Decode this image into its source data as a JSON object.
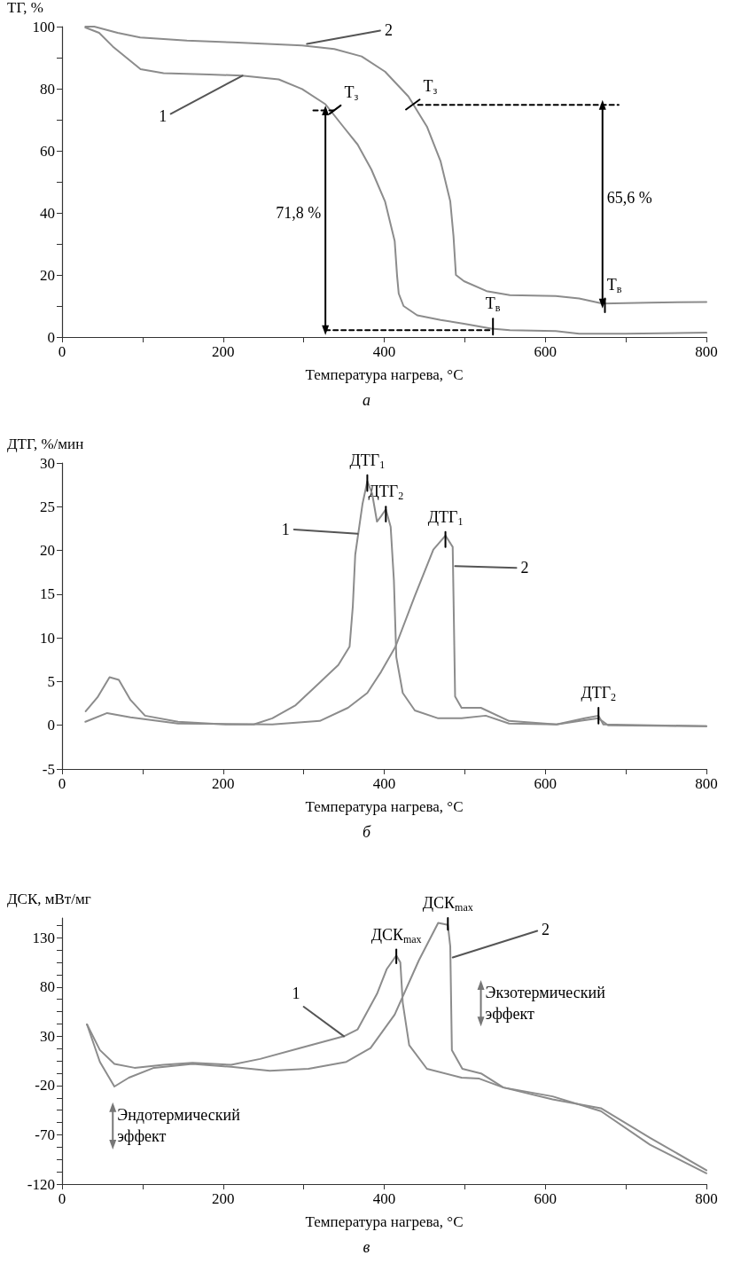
{
  "chart_data": [
    {
      "type": "line",
      "xlabel": "Температура нагрева, °C",
      "ylabel": "ТГ, %",
      "line_style": "solid",
      "xlim": [
        0,
        800
      ],
      "xticks": [
        0,
        {
          "value": 100,
          "label": null
        },
        200,
        {
          "value": 300,
          "label": null
        },
        400,
        {
          "value": 500,
          "label": null
        },
        600,
        {
          "value": 700,
          "label": null
        },
        800
      ],
      "ylim": [
        0,
        100
      ],
      "yticks": [
        0,
        {
          "value": 10,
          "label": null
        },
        20,
        {
          "value": 30,
          "label": null
        },
        40,
        {
          "value": 50,
          "label": null
        },
        60,
        {
          "value": 70,
          "label": null
        },
        80,
        {
          "value": 90,
          "label": null
        },
        100
      ],
      "series": [
        {
          "color": "#8c8c8c",
          "x": [
            29,
            46,
            63,
            86,
            97.5,
            126,
            183,
            223,
            269,
            298,
            327,
            350,
            367,
            384,
            401,
            413,
            416,
            418,
            424,
            441,
            470,
            499,
            533,
            556,
            613,
            642,
            699,
            800
          ],
          "values": [
            99.7,
            98,
            93.6,
            88.7,
            86.3,
            85,
            84.6,
            84.2,
            83,
            79.9,
            75,
            67.5,
            62,
            54,
            43.7,
            30.9,
            19.6,
            14,
            10,
            7,
            5.5,
            4.3,
            2.7,
            2.2,
            1.9,
            1.1,
            1.1,
            1.4
          ]
        },
        {
          "color": "#8c8c8c",
          "x": [
            29,
            40,
            69,
            97,
            155,
            212,
            298,
            338,
            372,
            401,
            430,
            453,
            470,
            482,
            486,
            489,
            499,
            527,
            556,
            613,
            642,
            671,
            728,
            800
          ],
          "values": [
            100,
            100,
            98,
            96.5,
            95.5,
            94.9,
            93.9,
            92.8,
            90.4,
            85.5,
            77.5,
            67.8,
            56.6,
            43.7,
            32.5,
            20,
            18,
            14.8,
            13.5,
            13.2,
            12.4,
            10.8,
            11.1,
            11.3
          ]
        },
        {
          "color": "#000000",
          "line_style": "dashed",
          "x": [
            312,
            341
          ],
          "values": [
            73,
            73
          ]
        },
        {
          "color": "#000000",
          "line_style": "dashed",
          "x": [
            442,
            691
          ],
          "values": [
            74.8,
            74.8
          ]
        },
        {
          "color": "#000000",
          "line_style": "dashed",
          "x": [
            327,
            533
          ],
          "values": [
            2.2,
            2.2
          ]
        },
        {
          "color": "#000000",
          "marker": "triangle",
          "x": [
            327,
            327
          ],
          "values": [
            73,
            2.2
          ]
        },
        {
          "color": "#000000",
          "marker": "triangle",
          "x": [
            671,
            671
          ],
          "values": [
            74.8,
            10.8
          ]
        },
        {
          "color": "#555555",
          "x": [
            135,
            224
          ],
          "values": [
            71.9,
            84.2
          ]
        },
        {
          "color": "#555555",
          "x": [
            304,
            395
          ],
          "values": [
            94.4,
            98.7
          ]
        },
        {
          "color": "#000000",
          "x": [
            332,
            346
          ],
          "values": [
            71.9,
            74.6
          ]
        },
        {
          "color": "#000000",
          "x": [
            427,
            444
          ],
          "values": [
            73.3,
            76.5
          ]
        },
        {
          "color": "#000000",
          "x": [
            535,
            535
          ],
          "values": [
            0.8,
            5.9
          ]
        },
        {
          "color": "#000000",
          "x": [
            674,
            674
          ],
          "values": [
            8,
            12.4
          ]
        }
      ],
      "annotations": [
        {
          "text": "1",
          "x": 135,
          "y": 71.9
        },
        {
          "text": "2",
          "x": 395,
          "y": 98.7
        },
        {
          "text": "T$_{з}$",
          "x": 346,
          "y": 74.6
        },
        {
          "text": "T$_{з}$",
          "x": 444,
          "y": 76.5
        },
        {
          "text": "T$_{в}$",
          "x": 671,
          "y": 17
        },
        {
          "text": "T$_{в}$",
          "x": 535,
          "y": 5.9
        },
        {
          "text": "71,8 %",
          "x": 327,
          "y": 40
        },
        {
          "text": "65,6 %",
          "x": 671,
          "y": 45
        },
        "а"
      ]
    },
    {
      "type": "line",
      "xlabel": "Температура нагрева, °C",
      "ylabel": "ДТГ, %/мин",
      "line_style": "solid",
      "xlim": [
        0,
        800
      ],
      "xticks": [
        0,
        {
          "value": 100,
          "label": null
        },
        200,
        {
          "value": 300,
          "label": null
        },
        400,
        {
          "value": 500,
          "label": null
        },
        600,
        {
          "value": 700,
          "label": null
        },
        800
      ],
      "ylim": [
        -5,
        30
      ],
      "yticks": [
        -5,
        0,
        5,
        10,
        15,
        20,
        25,
        30
      ],
      "series": [
        {
          "color": "#8c8c8c",
          "x": [
            29.4,
            44,
            59,
            70.5,
            85,
            103,
            144,
            203,
            238,
            261,
            290,
            320,
            343,
            357,
            361,
            364,
            373,
            379,
            385,
            391,
            396,
            402,
            408,
            412,
            415,
            423,
            438,
            467,
            496,
            526,
            555,
            614,
            643,
            666,
            678,
            800
          ],
          "values": [
            1.6,
            3.2,
            5.5,
            5.2,
            2.9,
            1.1,
            0.4,
            0.1,
            0.1,
            0.8,
            2.3,
            4.9,
            6.9,
            9,
            13.6,
            19.5,
            25.3,
            27.9,
            26.5,
            23.3,
            23.9,
            24.7,
            22.7,
            16.6,
            7.8,
            3.7,
            1.7,
            0.8,
            0.8,
            1.1,
            0.2,
            0.1,
            0.5,
            0.8,
            0,
            -0.1
          ]
        },
        {
          "color": "#8c8c8c",
          "x": [
            29,
            56,
            85,
            144,
            261,
            320,
            355,
            379,
            396,
            414,
            438,
            461,
            476,
            485,
            486,
            488,
            496,
            520,
            555,
            614,
            649,
            666,
            672,
            800
          ],
          "values": [
            0.4,
            1.4,
            0.9,
            0.2,
            0.1,
            0.5,
            2,
            3.7,
            6.1,
            9,
            14.8,
            20.1,
            21.7,
            20.4,
            14.8,
            3.3,
            2,
            2,
            0.5,
            0.1,
            0.8,
            1.1,
            0.1,
            -0.1
          ]
        },
        {
          "color": "#000000",
          "x": [
            379,
            379
          ],
          "values": [
            26.8,
            28.6
          ]
        },
        {
          "color": "#000000",
          "x": [
            402,
            402
          ],
          "values": [
            23.3,
            25
          ]
        },
        {
          "color": "#000000",
          "x": [
            476,
            476
          ],
          "values": [
            20.4,
            22.1
          ]
        },
        {
          "color": "#000000",
          "x": [
            666,
            666
          ],
          "values": [
            0.2,
            2
          ]
        },
        {
          "color": "#555555",
          "x": [
            288,
            367
          ],
          "values": [
            22.4,
            21.9
          ]
        },
        {
          "color": "#555555",
          "x": [
            488,
            564
          ],
          "values": [
            18.2,
            18
          ]
        }
      ],
      "annotations": [
        {
          "text": "ДТГ$_{1}$",
          "x": 379,
          "y": 28.6
        },
        {
          "text": "ДТГ$_{2}$",
          "x": 402,
          "y": 25
        },
        {
          "text": "ДТГ$_{1}$",
          "x": 476,
          "y": 22.1
        },
        {
          "text": "ДТГ$_{2}$",
          "x": 666,
          "y": 2
        },
        {
          "text": "1",
          "x": 288,
          "y": 22.4
        },
        {
          "text": "2",
          "x": 564,
          "y": 18
        },
        "б"
      ]
    },
    {
      "type": "line",
      "xlabel": "Температура нагрева, °C",
      "ylabel": "ДСК, мВт/мг",
      "line_style": "solid",
      "xlim": [
        0,
        800
      ],
      "xticks": [
        0,
        {
          "value": 100,
          "label": null
        },
        200,
        {
          "value": 300,
          "label": null
        },
        400,
        {
          "value": 500,
          "label": null
        },
        600,
        {
          "value": 700,
          "label": null
        },
        800
      ],
      "ylim": [
        -120,
        150
      ],
      "yticks": [
        -120,
        {
          "value": -107.5,
          "label": null
        },
        {
          "value": -95,
          "label": null
        },
        {
          "value": -82.5,
          "label": null
        },
        -70,
        {
          "value": -57.5,
          "label": null
        },
        {
          "value": -45,
          "label": null
        },
        {
          "value": -32.5,
          "label": null
        },
        -20,
        {
          "value": -7.5,
          "label": null
        },
        {
          "value": 5,
          "label": null
        },
        {
          "value": 17.5,
          "label": null
        },
        30,
        {
          "value": 42.5,
          "label": null
        },
        {
          "value": 55,
          "label": null
        },
        {
          "value": 67.5,
          "label": null
        },
        80,
        {
          "value": 92.5,
          "label": null
        },
        {
          "value": 105,
          "label": null
        },
        {
          "value": 117.5,
          "label": null
        },
        130,
        {
          "value": 142.5,
          "label": null
        }
      ],
      "series": [
        {
          "color": "#8c8c8c",
          "x": [
            31,
            47,
            65,
            90,
            126,
            162,
            210,
            246,
            295,
            350,
            367,
            391,
            403,
            415,
            420,
            423,
            431,
            453,
            496,
            518,
            548,
            609,
            669,
            730,
            800
          ],
          "values": [
            42,
            16,
            2,
            -2,
            1,
            3,
            1,
            7,
            18,
            30,
            37,
            73,
            98,
            112,
            105,
            64,
            21,
            -3,
            -12,
            -13,
            -22,
            -31,
            -46,
            -80,
            -109
          ]
        },
        {
          "color": "#8c8c8c",
          "x": [
            31,
            47,
            65,
            83,
            114,
            162,
            210,
            258,
            306,
            353,
            383,
            413,
            443,
            467,
            479,
            482,
            484,
            497,
            521,
            548,
            609,
            669,
            730,
            800
          ],
          "values": [
            42,
            4,
            -21,
            -12,
            -2,
            2,
            -1,
            -5,
            -3,
            4,
            18,
            52,
            107,
            145,
            143,
            121,
            16,
            -3,
            -8,
            -22,
            -34,
            -43,
            -73,
            -106
          ]
        },
        {
          "color": "#555555",
          "x": [
            300,
            350
          ],
          "values": [
            60,
            30
          ]
        },
        {
          "color": "#555555",
          "x": [
            485,
            590
          ],
          "values": [
            110,
            137
          ]
        },
        {
          "color": "#000000",
          "x": [
            415,
            415
          ],
          "values": [
            104,
            118
          ]
        },
        {
          "color": "#000000",
          "x": [
            479,
            479
          ],
          "values": [
            138,
            150
          ]
        },
        {
          "color": "#777777",
          "marker": "triangle",
          "x": [
            520,
            520
          ],
          "values": [
            45,
            82
          ]
        },
        {
          "color": "#777777",
          "marker": "triangle",
          "x": [
            63,
            63
          ],
          "values": [
            -80,
            -42
          ]
        }
      ],
      "annotations": [
        {
          "text": "ДСК$_{max}$",
          "x": 415,
          "y": 118
        },
        {
          "text": "ДСК$_{max}$",
          "x": 479,
          "y": 150
        },
        {
          "text": "1",
          "x": 300,
          "y": 60
        },
        {
          "text": "2",
          "x": 590,
          "y": 137
        },
        {
          "text": "Экзотермический эффект",
          "x": 520,
          "y": 64
        },
        {
          "text": "Эндотермический эффект",
          "x": 63,
          "y": -61
        },
        "в"
      ]
    }
  ]
}
